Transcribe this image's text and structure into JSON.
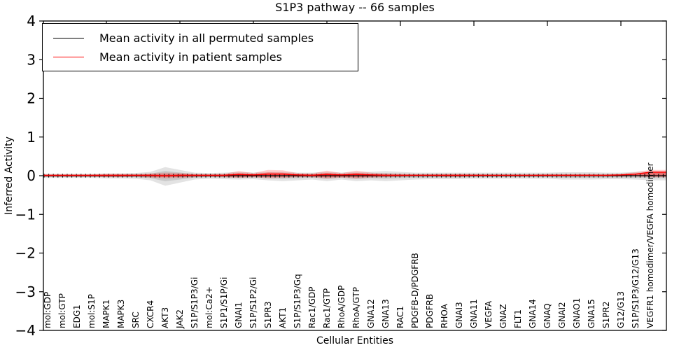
{
  "title": "S1P3 pathway -- 66 samples",
  "legend": {
    "items": [
      {
        "label": "Mean activity in all permuted samples",
        "color": "#000000"
      },
      {
        "label": "Mean activity in patient samples",
        "color": "#ff0000"
      }
    ]
  },
  "chart_data": {
    "type": "line",
    "title": "S1P3 pathway -- 66 samples",
    "xlabel": "Cellular Entities",
    "ylabel": "Inferred Activity",
    "ylim": [
      -4,
      4
    ],
    "ytick_values": [
      4,
      3,
      2,
      1,
      0,
      -1,
      -2,
      -3,
      -4
    ],
    "ytick_labels": [
      "4",
      "3",
      "2",
      "1",
      "0",
      "−1",
      "−2",
      "−3",
      "−4"
    ],
    "grid": false,
    "legend_position": "upper left",
    "categories": [
      "mol:GDP",
      "mol:GTP",
      "EDG1",
      "mol:S1P",
      "MAPK1",
      "MAPK3",
      "SRC",
      "CXCR4",
      "AKT3",
      "JAK2",
      "S1P/S1P3/Gi",
      "mol:Ca2+",
      "S1P1/S1P/Gi",
      "GNAI1",
      "S1P/S1P2/Gi",
      "S1PR3",
      "AKT1",
      "S1P/S1P3/Gq",
      "Rac1/GDP",
      "Rac1/GTP",
      "RhoA/GDP",
      "RhoA/GTP",
      "GNA12",
      "GNA13",
      "RAC1",
      "PDGFB-D/PDGFRB",
      "PDGFRB",
      "RHOA",
      "GNAI3",
      "GNA11",
      "VEGFA",
      "GNAZ",
      "FLT1",
      "GNA14",
      "GNAQ",
      "GNAI2",
      "GNAO1",
      "GNA15",
      "S1PR2",
      "G12/G13",
      "S1P/S1P3/G12/G13",
      "VEGFR1 homodimer/VEGFA homodimer"
    ],
    "series": [
      {
        "name": "Mean activity in all permuted samples",
        "color": "#000000",
        "values": [
          0,
          0,
          0,
          0,
          0,
          0,
          0,
          0,
          0,
          0,
          0,
          0,
          0,
          0,
          0,
          0,
          0,
          0,
          0,
          0,
          0,
          0,
          0,
          0,
          0,
          0,
          0,
          0,
          0,
          0,
          0,
          0,
          0,
          0,
          0,
          0,
          0,
          0,
          0,
          0,
          0,
          0
        ]
      },
      {
        "name": "Mean activity in patient samples",
        "color": "#ff0000",
        "values": [
          0.01,
          0.01,
          0.01,
          0.01,
          0.01,
          0.01,
          0.01,
          0.01,
          0.0,
          0.01,
          0.01,
          0.01,
          0.01,
          0.03,
          0.02,
          0.04,
          0.04,
          0.02,
          0.01,
          0.03,
          0.02,
          0.03,
          0.02,
          0.01,
          0.01,
          0.01,
          0.01,
          0.01,
          0.01,
          0.01,
          0.01,
          0.01,
          0.01,
          0.01,
          0.01,
          0.01,
          0.01,
          0.01,
          0.01,
          0.02,
          0.04,
          0.09
        ]
      }
    ],
    "bands": [
      {
        "name": "permuted-samples-range",
        "color": "#c0c0c0",
        "upper": [
          0.05,
          0.05,
          0.05,
          0.05,
          0.06,
          0.06,
          0.07,
          0.1,
          0.22,
          0.15,
          0.08,
          0.07,
          0.08,
          0.1,
          0.08,
          0.1,
          0.1,
          0.08,
          0.08,
          0.1,
          0.08,
          0.1,
          0.1,
          0.12,
          0.1,
          0.08,
          0.08,
          0.08,
          0.08,
          0.08,
          0.08,
          0.08,
          0.08,
          0.08,
          0.08,
          0.09,
          0.09,
          0.09,
          0.08,
          0.08,
          0.1,
          0.12
        ],
        "lower": [
          -0.06,
          -0.06,
          -0.06,
          -0.06,
          -0.07,
          -0.07,
          -0.08,
          -0.12,
          -0.26,
          -0.18,
          -0.1,
          -0.08,
          -0.09,
          -0.1,
          -0.09,
          -0.12,
          -0.14,
          -0.12,
          -0.1,
          -0.14,
          -0.1,
          -0.14,
          -0.12,
          -0.14,
          -0.12,
          -0.1,
          -0.09,
          -0.09,
          -0.09,
          -0.08,
          -0.08,
          -0.08,
          -0.08,
          -0.08,
          -0.08,
          -0.1,
          -0.1,
          -0.1,
          -0.09,
          -0.09,
          -0.1,
          -0.12
        ]
      },
      {
        "name": "patient-samples-range",
        "color": "#ff0000",
        "upper": [
          0.03,
          0.03,
          0.03,
          0.03,
          0.05,
          0.05,
          0.04,
          0.06,
          0.08,
          0.07,
          0.05,
          0.04,
          0.05,
          0.12,
          0.07,
          0.15,
          0.14,
          0.07,
          0.06,
          0.13,
          0.07,
          0.13,
          0.08,
          0.06,
          0.05,
          0.04,
          0.04,
          0.05,
          0.05,
          0.04,
          0.03,
          0.03,
          0.03,
          0.03,
          0.04,
          0.04,
          0.04,
          0.04,
          0.03,
          0.05,
          0.09,
          0.15
        ],
        "lower": [
          -0.03,
          -0.03,
          -0.03,
          -0.03,
          -0.04,
          -0.04,
          -0.03,
          -0.05,
          -0.07,
          -0.06,
          -0.04,
          -0.03,
          -0.04,
          -0.06,
          -0.04,
          -0.07,
          -0.06,
          -0.04,
          -0.04,
          -0.08,
          -0.05,
          -0.08,
          -0.05,
          -0.04,
          -0.03,
          -0.02,
          -0.02,
          -0.03,
          -0.03,
          -0.02,
          -0.02,
          -0.02,
          -0.02,
          -0.02,
          -0.02,
          -0.02,
          -0.02,
          -0.02,
          -0.02,
          -0.02,
          -0.02,
          -0.04
        ]
      }
    ],
    "top_tick_sample_indices": [
      4,
      9,
      14,
      19,
      24,
      29,
      34,
      39
    ]
  }
}
